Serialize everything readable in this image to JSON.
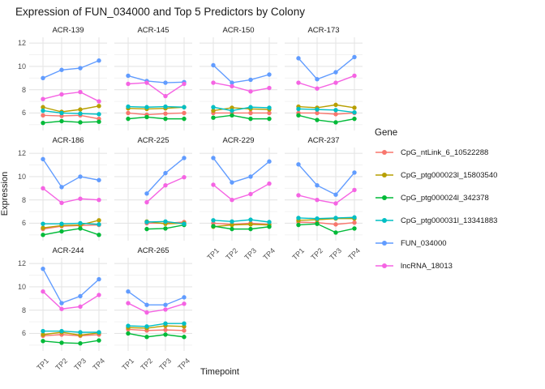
{
  "title": "Expression of FUN_034000 and Top 5 Predictors by Colony",
  "chart_data": {
    "type": "line",
    "facet_by": "Colony",
    "categories": [
      "TP1",
      "TP2",
      "TP3",
      "TP4"
    ],
    "xlabel": "Timepoint",
    "ylabel": "Expression",
    "ylim": [
      4.5,
      12.5
    ],
    "yticks": [
      6,
      8,
      10,
      12
    ],
    "yticks_minor": [
      5,
      7,
      9,
      11
    ],
    "grid": true,
    "legend_title": "Gene",
    "legend_position": "right",
    "genes": [
      {
        "name": "CpG_ntLink_6_10522288",
        "color": "#F8766D"
      },
      {
        "name": "CpG_ptg000023l_15803540",
        "color": "#B79F00"
      },
      {
        "name": "CpG_ptg000024l_342378",
        "color": "#00BA38"
      },
      {
        "name": "CpG_ptg000031l_13341883",
        "color": "#00BFC4"
      },
      {
        "name": "FUN_034000",
        "color": "#619CFF"
      },
      {
        "name": "lncRNA_18013",
        "color": "#F564E3"
      }
    ],
    "facets": [
      {
        "name": "ACR-139",
        "series": [
          [
            5.8,
            5.75,
            5.8,
            5.5
          ],
          [
            6.5,
            6.1,
            6.3,
            6.6
          ],
          [
            5.15,
            5.3,
            5.2,
            5.25
          ],
          [
            6.2,
            6.0,
            5.95,
            5.9
          ],
          [
            9.0,
            9.7,
            9.85,
            10.5
          ],
          [
            7.2,
            7.6,
            7.8,
            7.0
          ]
        ]
      },
      {
        "name": "ACR-145",
        "series": [
          [
            6.0,
            5.85,
            5.95,
            6.0
          ],
          [
            6.4,
            6.35,
            6.4,
            6.5
          ],
          [
            5.5,
            5.65,
            5.5,
            5.5
          ],
          [
            6.55,
            6.5,
            6.55,
            6.5
          ],
          [
            9.2,
            8.75,
            8.6,
            8.65
          ],
          [
            8.5,
            8.6,
            7.45,
            8.5
          ]
        ]
      },
      {
        "name": "ACR-150",
        "series": [
          [
            6.0,
            6.0,
            6.0,
            6.0
          ],
          [
            6.2,
            6.45,
            6.35,
            6.3
          ],
          [
            5.6,
            5.8,
            5.5,
            5.5
          ],
          [
            6.5,
            6.2,
            6.5,
            6.45
          ],
          [
            10.1,
            8.6,
            8.85,
            9.3
          ],
          [
            8.6,
            8.3,
            7.85,
            8.15
          ]
        ]
      },
      {
        "name": "ACR-173",
        "series": [
          [
            6.0,
            6.0,
            5.9,
            6.0
          ],
          [
            6.55,
            6.45,
            6.7,
            6.45
          ],
          [
            5.8,
            5.4,
            5.2,
            5.5
          ],
          [
            6.35,
            6.3,
            6.25,
            6.05
          ],
          [
            10.7,
            8.9,
            9.5,
            10.8
          ],
          [
            8.6,
            8.1,
            8.6,
            9.2
          ]
        ]
      },
      {
        "name": "ACR-186",
        "series": [
          [
            5.5,
            5.75,
            5.8,
            5.85
          ],
          [
            5.6,
            5.8,
            5.85,
            6.25
          ],
          [
            5.0,
            5.3,
            5.55,
            5.0
          ],
          [
            5.95,
            5.95,
            6.0,
            5.9
          ],
          [
            11.5,
            9.1,
            10.0,
            9.7
          ],
          [
            9.0,
            7.75,
            8.1,
            8.0
          ]
        ]
      },
      {
        "name": "ACR-225",
        "series": [
          [
            null,
            6.0,
            6.0,
            6.1
          ],
          [
            null,
            6.15,
            5.95,
            6.0
          ],
          [
            null,
            5.5,
            5.55,
            5.85
          ],
          [
            null,
            6.1,
            6.15,
            5.95
          ],
          [
            null,
            8.55,
            10.3,
            11.6
          ],
          [
            null,
            7.8,
            9.25,
            9.95
          ]
        ]
      },
      {
        "name": "ACR-229",
        "series": [
          [
            6.0,
            5.9,
            6.0,
            5.9
          ],
          [
            5.7,
            5.85,
            5.9,
            5.85
          ],
          [
            5.75,
            5.5,
            5.5,
            5.7
          ],
          [
            6.25,
            6.15,
            6.3,
            6.1
          ],
          [
            11.6,
            9.5,
            10.0,
            11.3
          ],
          [
            9.3,
            8.0,
            8.5,
            9.4
          ]
        ]
      },
      {
        "name": "ACR-237",
        "series": [
          [
            6.1,
            6.05,
            5.9,
            6.05
          ],
          [
            6.25,
            6.3,
            6.4,
            6.4
          ],
          [
            5.85,
            5.95,
            5.2,
            5.55
          ],
          [
            6.45,
            6.4,
            6.45,
            6.5
          ],
          [
            11.05,
            9.25,
            8.45,
            10.35
          ],
          [
            8.4,
            8.0,
            7.7,
            8.85
          ]
        ]
      },
      {
        "name": "ACR-244",
        "series": [
          [
            5.8,
            5.9,
            5.8,
            5.9
          ],
          [
            5.9,
            6.1,
            5.85,
            6.05
          ],
          [
            5.35,
            5.2,
            5.15,
            5.4
          ],
          [
            6.2,
            6.2,
            6.1,
            6.1
          ],
          [
            11.55,
            8.6,
            9.2,
            10.65
          ],
          [
            9.6,
            8.1,
            8.3,
            9.3
          ]
        ]
      },
      {
        "name": "ACR-265",
        "series": [
          [
            6.35,
            6.25,
            6.3,
            6.25
          ],
          [
            6.5,
            6.45,
            6.65,
            6.6
          ],
          [
            6.0,
            5.7,
            5.9,
            5.7
          ],
          [
            6.65,
            6.6,
            6.85,
            6.85
          ],
          [
            9.6,
            8.45,
            8.45,
            9.1
          ],
          [
            8.6,
            7.8,
            8.05,
            8.55
          ]
        ]
      }
    ],
    "grid_color_major": "#E5E5E5",
    "grid_color_minor": "#F0F0F0"
  }
}
